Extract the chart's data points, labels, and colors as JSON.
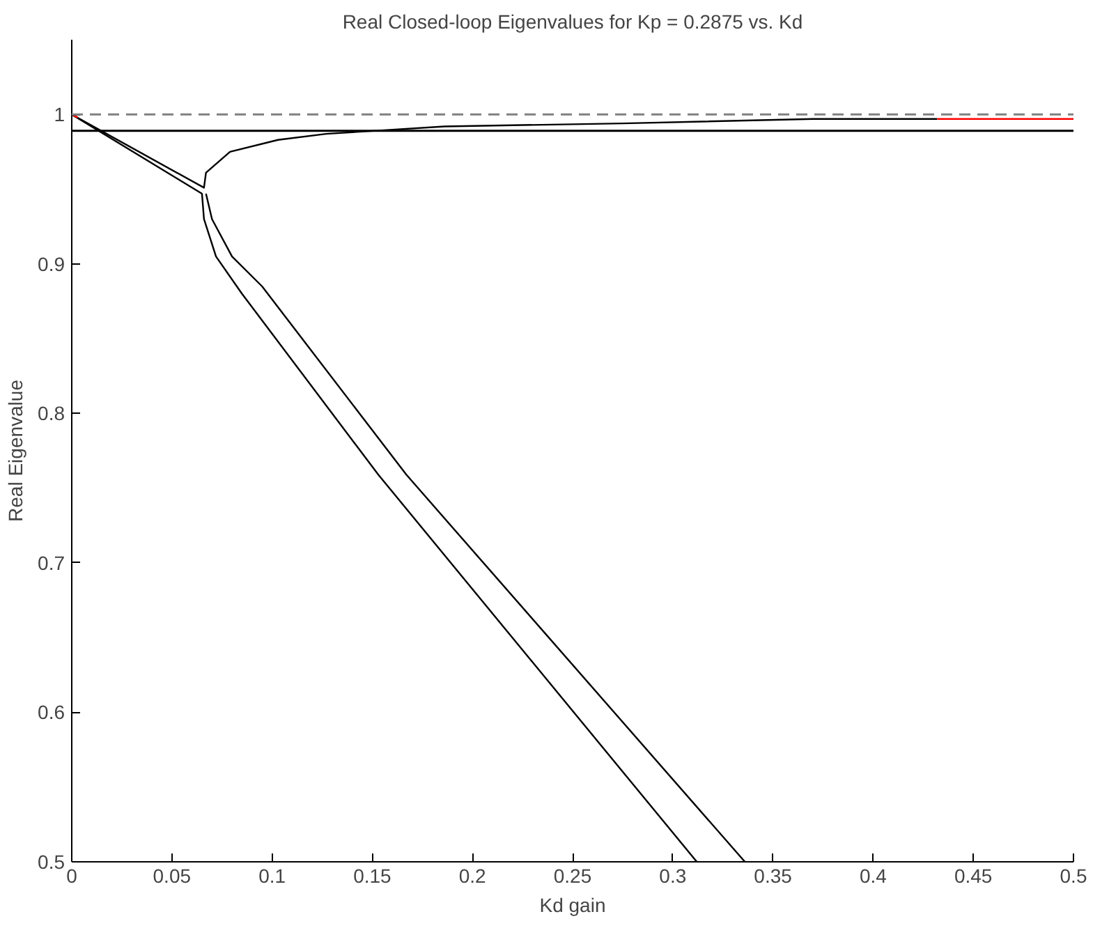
{
  "chart_data": {
    "type": "line",
    "title": "Real Closed-loop Eigenvalues for Kp = 0.2875 vs. Kd",
    "xlabel": "Kd gain",
    "ylabel": "Real Eigenvalue",
    "xlim": [
      0,
      0.5
    ],
    "ylim": [
      0.5,
      1.05
    ],
    "xticks": [
      0,
      0.05,
      0.1,
      0.15,
      0.2,
      0.25,
      0.3,
      0.35,
      0.4,
      0.45,
      0.5
    ],
    "yticks": [
      0.5,
      0.6,
      0.7,
      0.8,
      0.9,
      1
    ],
    "grid": false,
    "line_style": "solid",
    "series": [
      {
        "color": "#000000",
        "x": [
          0,
          0.066,
          0.067,
          0.079,
          0.103,
          0.127,
          0.186,
          0.275,
          0.37,
          0.432
        ],
        "values": [
          1,
          0.951,
          0.961,
          0.975,
          0.983,
          0.987,
          0.992,
          0.994,
          0.997,
          0.997
        ]
      },
      {
        "color": "#000000",
        "x": [
          0,
          0.065,
          0.066,
          0.072,
          0.085,
          0.153,
          0.312
        ],
        "values": [
          1,
          0.947,
          0.93,
          0.905,
          0.88,
          0.759,
          0.5
        ]
      },
      {
        "color": "#000000",
        "x": [
          0.067,
          0.07,
          0.08,
          0.095,
          0.167,
          0.336
        ],
        "values": [
          0.947,
          0.93,
          0.905,
          0.885,
          0.759,
          0.5
        ]
      },
      {
        "color": "#ff0000",
        "x": [
          0,
          0.003
        ],
        "values": [
          1,
          0.998
        ]
      },
      {
        "color": "#ff0000",
        "x": [
          0.432,
          0.5
        ],
        "values": [
          0.997,
          0.997
        ]
      }
    ],
    "ref_lines": [
      {
        "axis": "y",
        "value": 1,
        "color": "#808080",
        "line_style": "dashed"
      },
      {
        "axis": "y",
        "value": 0.989,
        "color": "#000000",
        "line_style": "solid"
      }
    ]
  }
}
